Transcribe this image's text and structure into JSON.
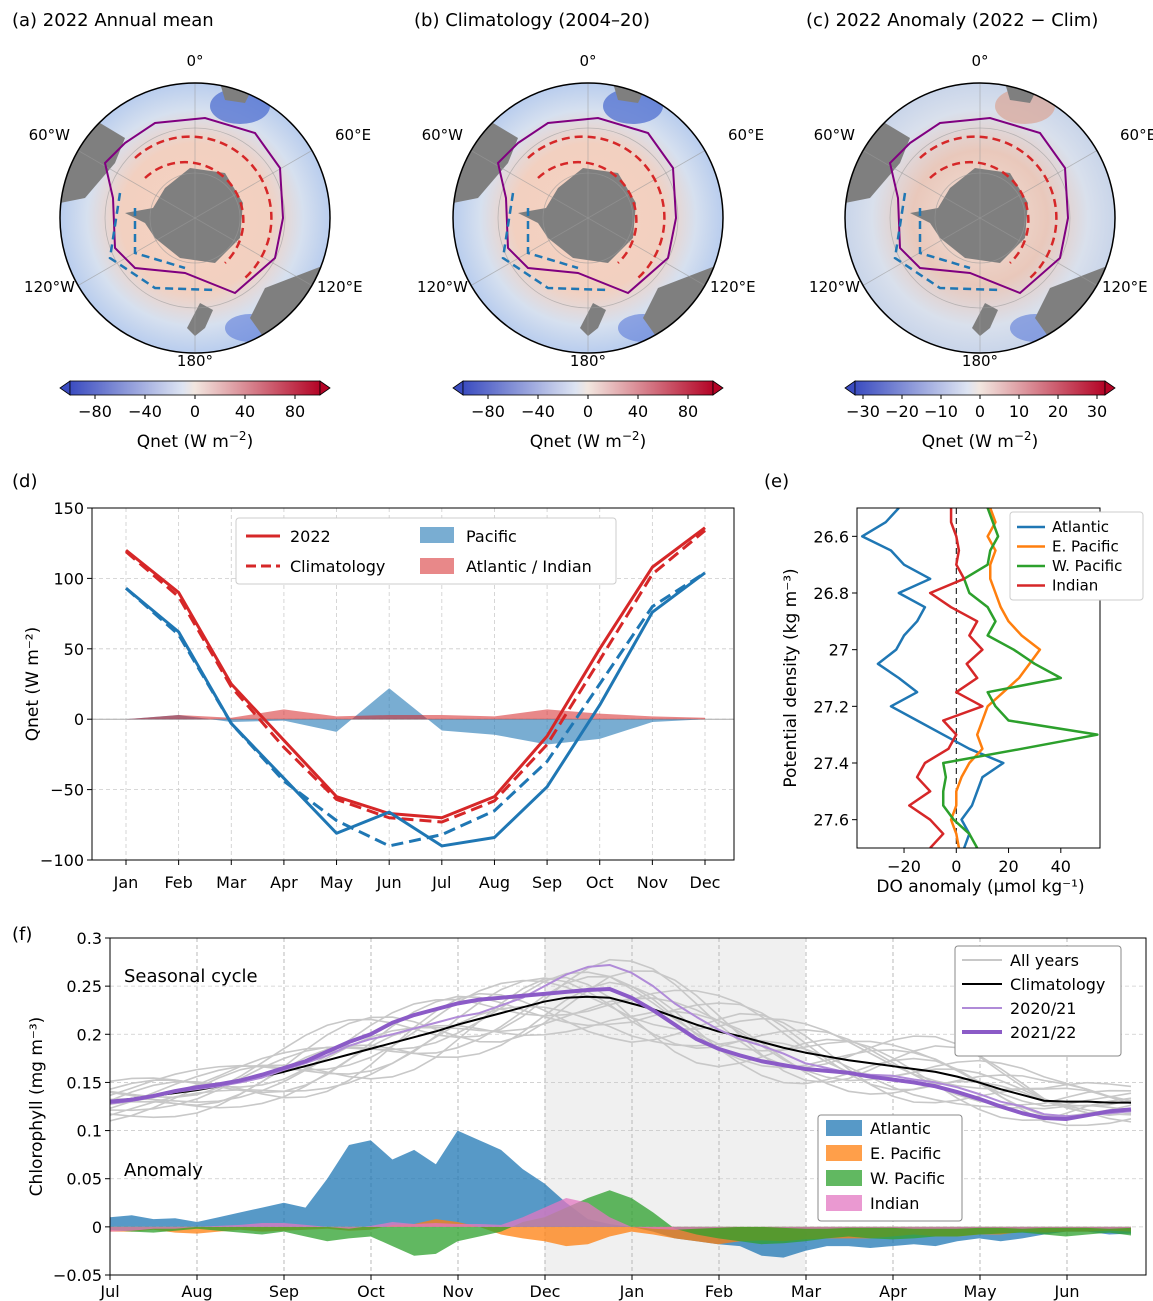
{
  "panels": {
    "a": {
      "title": "(a) 2022 Annual mean",
      "cbar_ticks": [
        "−80",
        "−40",
        "0",
        "40",
        "80"
      ],
      "cbar_label": "Qnet (W m",
      "cbar_exp": "−2",
      "cbar_close": ")"
    },
    "b": {
      "title": "(b) Climatology (2004–20)",
      "cbar_ticks": [
        "−80",
        "−40",
        "0",
        "40",
        "80"
      ],
      "cbar_label": "Qnet (W m",
      "cbar_exp": "−2",
      "cbar_close": ")"
    },
    "c": {
      "title": "(c) 2022 Anomaly (2022 − Clim)",
      "cbar_ticks": [
        "−30",
        "−20",
        "−10",
        "0",
        "10",
        "20",
        "30"
      ],
      "cbar_label": "Qnet (W m",
      "cbar_exp": "−2",
      "cbar_close": ")"
    },
    "d": {
      "label": "(d)"
    },
    "e": {
      "label": "(e)"
    },
    "f": {
      "label": "(f)",
      "seasonal_label": "Seasonal cycle",
      "anomaly_label": "Anomaly"
    }
  },
  "map_lon_labels": [
    "0°",
    "60°E",
    "120°E",
    "180°",
    "120°W",
    "60°W"
  ],
  "colors": {
    "red": "#d62728",
    "blue": "#1f77b4",
    "purple": "#800080",
    "orange": "#ff7f0e",
    "green": "#2ca02c",
    "pink": "#e377c2",
    "clim_purple": "#8b5bc7",
    "land": "#7f7f7f"
  },
  "chart_data": [
    {
      "id": "d",
      "type": "line",
      "xlabel": "",
      "ylabel": "Qnet (W m⁻²)",
      "ylim": [
        -100,
        150
      ],
      "yticks": [
        -100,
        -50,
        0,
        50,
        100,
        150
      ],
      "categories": [
        "Jan",
        "Feb",
        "Mar",
        "Apr",
        "May",
        "Jun",
        "Jul",
        "Aug",
        "Sep",
        "Oct",
        "Nov",
        "Dec"
      ],
      "series": [
        {
          "name": "2022",
          "region": "red",
          "style": "solid",
          "values": [
            120,
            90,
            25,
            -15,
            -55,
            -67,
            -70,
            -55,
            -12,
            50,
            108,
            136
          ]
        },
        {
          "name": "Climatology",
          "region": "red",
          "style": "dashed",
          "values": [
            119,
            87,
            23,
            -20,
            -57,
            -70,
            -73,
            -58,
            -18,
            42,
            103,
            134
          ]
        },
        {
          "region": "blue",
          "style": "solid",
          "values": [
            93,
            62,
            -3,
            -42,
            -81,
            -66,
            -90,
            -84,
            -48,
            10,
            76,
            104
          ]
        },
        {
          "region": "blue",
          "style": "dashed",
          "values": [
            93,
            60,
            -3,
            -44,
            -72,
            -90,
            -82,
            -65,
            -30,
            25,
            80,
            104
          ]
        }
      ],
      "fills": [
        {
          "name": "Pacific",
          "values": [
            0,
            3,
            -2,
            -1,
            -9,
            22,
            -8,
            -11,
            -18,
            -14,
            -2,
            0
          ]
        },
        {
          "name": "Atlantic / Indian",
          "values": [
            0,
            3,
            1,
            7,
            2,
            3,
            3,
            2,
            7,
            4,
            2,
            1
          ]
        }
      ],
      "legend": {
        "placement": "top-center"
      }
    },
    {
      "id": "e",
      "type": "line",
      "xlabel": "DO anomaly (μmol kg⁻¹)",
      "ylabel": "Potential density (kg m⁻³)",
      "xticks": [
        -20,
        0,
        20,
        40
      ],
      "yticks": [
        26.6,
        26.8,
        27,
        27.2,
        27.4,
        27.6
      ],
      "xlim": [
        -38,
        55
      ],
      "ylim": [
        26.5,
        27.7
      ],
      "y": [
        26.5,
        26.55,
        26.6,
        26.65,
        26.7,
        26.75,
        26.8,
        26.85,
        26.9,
        26.95,
        27.0,
        27.05,
        27.1,
        27.15,
        27.2,
        27.25,
        27.3,
        27.35,
        27.4,
        27.45,
        27.5,
        27.55,
        27.6,
        27.65,
        27.7
      ],
      "series": [
        {
          "name": "Atlantic",
          "values": [
            -22,
            -27,
            -36,
            -25,
            -20,
            -10,
            -22,
            -12,
            -15,
            -20,
            -23,
            -30,
            -22,
            -15,
            -25,
            -15,
            -5,
            5,
            18,
            10,
            8,
            6,
            2,
            5,
            3
          ]
        },
        {
          "name": "E. Pacific",
          "values": [
            13,
            15,
            12,
            15,
            13,
            13,
            15,
            17,
            20,
            25,
            32,
            28,
            24,
            18,
            12,
            10,
            8,
            10,
            5,
            2,
            0,
            0,
            -2,
            0,
            1
          ]
        },
        {
          "name": "W. Pacific",
          "values": [
            12,
            14,
            16,
            13,
            12,
            3,
            5,
            12,
            15,
            12,
            22,
            30,
            40,
            12,
            15,
            20,
            54,
            25,
            -5,
            -4,
            -5,
            -5,
            -1,
            5,
            8
          ]
        },
        {
          "name": "Indian",
          "values": [
            -2,
            -2,
            0,
            1,
            0,
            3,
            -10,
            -2,
            8,
            5,
            10,
            4,
            8,
            0,
            10,
            -5,
            0,
            -3,
            -12,
            -15,
            -10,
            -18,
            -10,
            -5,
            -10
          ]
        }
      ],
      "legend": {
        "placement": "top-right"
      }
    },
    {
      "id": "f",
      "type": "line",
      "xlabel": "",
      "ylabel": "Chlorophyll (mg m⁻³)",
      "ylim": [
        -0.05,
        0.3
      ],
      "yticks": [
        -0.05,
        0,
        0.05,
        0.1,
        0.15,
        0.2,
        0.25,
        0.3
      ],
      "months": [
        "Jul",
        "Aug",
        "Sep",
        "Oct",
        "Nov",
        "Dec",
        "Jan",
        "Feb",
        "Mar",
        "Apr",
        "May",
        "Jun"
      ],
      "x_months": [
        0,
        0.25,
        0.5,
        0.75,
        1,
        1.25,
        1.5,
        1.75,
        2,
        2.25,
        2.5,
        2.75,
        3,
        3.25,
        3.5,
        3.75,
        4,
        4.25,
        4.5,
        4.75,
        5,
        5.25,
        5.5,
        5.75,
        6,
        6.25,
        6.5,
        6.75,
        7,
        7.25,
        7.5,
        7.75,
        8,
        8.25,
        8.5,
        8.75,
        9,
        9.25,
        9.5,
        9.75,
        10,
        10.25,
        10.5,
        10.75,
        11,
        11.25,
        11.5,
        11.75
      ],
      "shaded_month_range": [
        5,
        8
      ],
      "series": [
        {
          "name": "Climatology",
          "values": [
            0.13,
            0.133,
            0.136,
            0.139,
            0.142,
            0.146,
            0.151,
            0.156,
            0.161,
            0.167,
            0.173,
            0.179,
            0.185,
            0.191,
            0.197,
            0.203,
            0.21,
            0.216,
            0.222,
            0.228,
            0.234,
            0.238,
            0.239,
            0.238,
            0.232,
            0.226,
            0.218,
            0.21,
            0.203,
            0.198,
            0.192,
            0.186,
            0.181,
            0.177,
            0.173,
            0.17,
            0.167,
            0.164,
            0.161,
            0.156,
            0.15,
            0.143,
            0.137,
            0.131,
            0.13,
            0.13,
            0.129,
            0.129
          ]
        },
        {
          "name": "2020/21",
          "values": [
            0.128,
            0.131,
            0.135,
            0.14,
            0.143,
            0.146,
            0.15,
            0.155,
            0.163,
            0.17,
            0.178,
            0.188,
            0.195,
            0.2,
            0.206,
            0.212,
            0.218,
            0.222,
            0.23,
            0.238,
            0.25,
            0.262,
            0.27,
            0.272,
            0.264,
            0.25,
            0.232,
            0.218,
            0.205,
            0.195,
            0.188,
            0.18,
            0.17,
            0.165,
            0.16,
            0.158,
            0.157,
            0.153,
            0.15,
            0.145,
            0.138,
            0.13,
            0.125,
            0.117,
            0.115,
            0.116,
            0.118,
            0.12
          ]
        },
        {
          "name": "2021/22",
          "values": [
            0.13,
            0.132,
            0.136,
            0.141,
            0.145,
            0.148,
            0.152,
            0.158,
            0.165,
            0.172,
            0.182,
            0.192,
            0.2,
            0.212,
            0.22,
            0.226,
            0.232,
            0.236,
            0.238,
            0.24,
            0.242,
            0.244,
            0.246,
            0.247,
            0.238,
            0.225,
            0.21,
            0.195,
            0.185,
            0.178,
            0.172,
            0.168,
            0.164,
            0.162,
            0.16,
            0.156,
            0.153,
            0.15,
            0.146,
            0.14,
            0.133,
            0.125,
            0.118,
            0.113,
            0.112,
            0.116,
            0.12,
            0.122
          ]
        }
      ],
      "all_years_count": 14,
      "anomalies": [
        {
          "name": "Atlantic",
          "values": [
            0.01,
            0.012,
            0.008,
            0.009,
            0.005,
            0.01,
            0.015,
            0.02,
            0.025,
            0.02,
            0.05,
            0.085,
            0.09,
            0.07,
            0.08,
            0.065,
            0.1,
            0.09,
            0.08,
            0.06,
            0.045,
            0.025,
            0.008,
            0.003,
            0.0,
            -0.005,
            -0.012,
            -0.015,
            -0.018,
            -0.02,
            -0.03,
            -0.032,
            -0.025,
            -0.02,
            -0.02,
            -0.022,
            -0.02,
            -0.018,
            -0.02,
            -0.015,
            -0.012,
            -0.015,
            -0.012,
            -0.008,
            -0.005,
            -0.005,
            -0.008,
            -0.007
          ]
        },
        {
          "name": "E. Pacific",
          "values": [
            -0.005,
            -0.005,
            -0.003,
            -0.006,
            -0.007,
            -0.005,
            -0.003,
            -0.005,
            -0.004,
            -0.003,
            -0.002,
            -0.004,
            -0.003,
            0.002,
            0.003,
            0.008,
            0.005,
            0.0,
            -0.008,
            -0.012,
            -0.015,
            -0.02,
            -0.018,
            -0.01,
            -0.005,
            -0.008,
            -0.012,
            -0.015,
            -0.018,
            -0.015,
            -0.014,
            -0.015,
            -0.013,
            -0.012,
            -0.012,
            -0.012,
            -0.01,
            -0.008,
            -0.01,
            -0.01,
            -0.008,
            -0.008,
            -0.005,
            -0.006,
            -0.005,
            -0.005,
            -0.004,
            -0.005
          ]
        },
        {
          "name": "W. Pacific",
          "values": [
            -0.003,
            -0.005,
            -0.006,
            -0.004,
            -0.002,
            -0.004,
            -0.006,
            -0.008,
            -0.005,
            -0.01,
            -0.015,
            -0.012,
            -0.01,
            -0.02,
            -0.03,
            -0.028,
            -0.015,
            -0.01,
            -0.005,
            0.005,
            0.01,
            0.02,
            0.03,
            0.038,
            0.03,
            0.015,
            -0.002,
            -0.008,
            -0.012,
            -0.015,
            -0.018,
            -0.017,
            -0.015,
            -0.012,
            -0.01,
            -0.012,
            -0.013,
            -0.012,
            -0.01,
            -0.01,
            -0.008,
            -0.007,
            -0.006,
            -0.008,
            -0.01,
            -0.008,
            -0.006,
            -0.009
          ]
        },
        {
          "name": "Indian",
          "values": [
            -0.005,
            -0.004,
            -0.002,
            -0.002,
            0.0,
            0.001,
            0.002,
            0.004,
            0.004,
            0.002,
            0.0,
            -0.002,
            0.001,
            0.005,
            0.003,
            0.004,
            0.003,
            0.003,
            0.002,
            0.01,
            0.02,
            0.03,
            0.025,
            0.01,
            0.0,
            -0.002,
            -0.003,
            -0.002,
            -0.001,
            0.0,
            0.0,
            -0.001,
            -0.002,
            -0.002,
            -0.001,
            -0.001,
            -0.001,
            -0.002,
            -0.002,
            -0.002,
            -0.001,
            -0.001,
            -0.002,
            -0.001,
            -0.001,
            -0.001,
            -0.002,
            -0.001
          ]
        }
      ],
      "legend_lines": [
        "All years",
        "Climatology",
        "2020/21",
        "2021/22"
      ],
      "legend_fills": [
        "Atlantic",
        "E. Pacific",
        "W. Pacific",
        "Indian"
      ]
    }
  ]
}
